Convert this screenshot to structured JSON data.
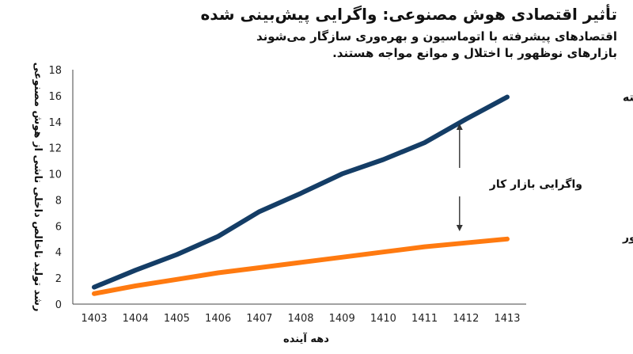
{
  "header": {
    "title": "تأثیر اقتصادی هوش مصنوعی: واگرایی پیش‌بینی شده",
    "subtitle_line1": "اقتصادهای پیشرفته با اتوماسیون و بهره‌وری سازگار می‌شوند",
    "subtitle_line2": "بازارهای نوظهور با اختلال و موانع مواجه هستند."
  },
  "chart_data": {
    "type": "line",
    "title": "تأثیر اقتصادی هوش مصنوعی: واگرایی پیش‌بینی شده",
    "xlabel": "دهه آینده",
    "ylabel": "رشد تولید ناخالص داخلی ناشی از هوش مصنوعی",
    "categories": [
      "1403",
      "1404",
      "1405",
      "1406",
      "1407",
      "1408",
      "1409",
      "1410",
      "1411",
      "1412",
      "1413"
    ],
    "ylim": [
      0,
      18
    ],
    "yticks": [
      "0",
      "2",
      "4",
      "6",
      "8",
      "10",
      "12",
      "14",
      "16",
      "18"
    ],
    "grid": false,
    "series": [
      {
        "name": "اقتصادهای پیشرفته",
        "color": "#143d66",
        "values": [
          1.3,
          2.6,
          3.8,
          5.2,
          7.1,
          8.5,
          10.0,
          11.1,
          12.4,
          14.2,
          15.9
        ]
      },
      {
        "name": "بازارهای نوظهور",
        "color": "#ff7a10",
        "values": [
          0.8,
          1.4,
          1.9,
          2.4,
          2.8,
          3.2,
          3.6,
          4.0,
          4.4,
          4.7,
          5.0
        ]
      }
    ],
    "annotation": {
      "text": "واگرایی بازار کار",
      "at_category": "1412"
    }
  }
}
